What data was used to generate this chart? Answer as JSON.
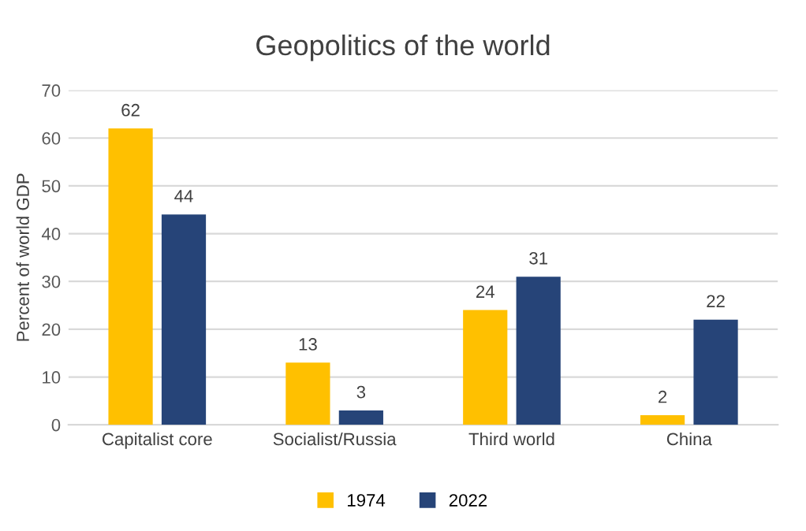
{
  "chart_data": {
    "type": "bar",
    "title": "Geopolitics of the world",
    "ylabel": "Percent of world GDP",
    "categories": [
      "Capitalist core",
      "Socialist/Russia",
      "Third world",
      "China"
    ],
    "series": [
      {
        "name": "1974",
        "color": "#ffc000",
        "values": [
          62,
          13,
          24,
          2
        ]
      },
      {
        "name": "2022",
        "color": "#264478",
        "values": [
          44,
          3,
          31,
          22
        ]
      }
    ],
    "ylim": [
      0,
      70
    ],
    "yticks": [
      0,
      10,
      20,
      30,
      40,
      50,
      60,
      70
    ],
    "grid": "y",
    "legend": "bottom",
    "data_labels": true
  }
}
